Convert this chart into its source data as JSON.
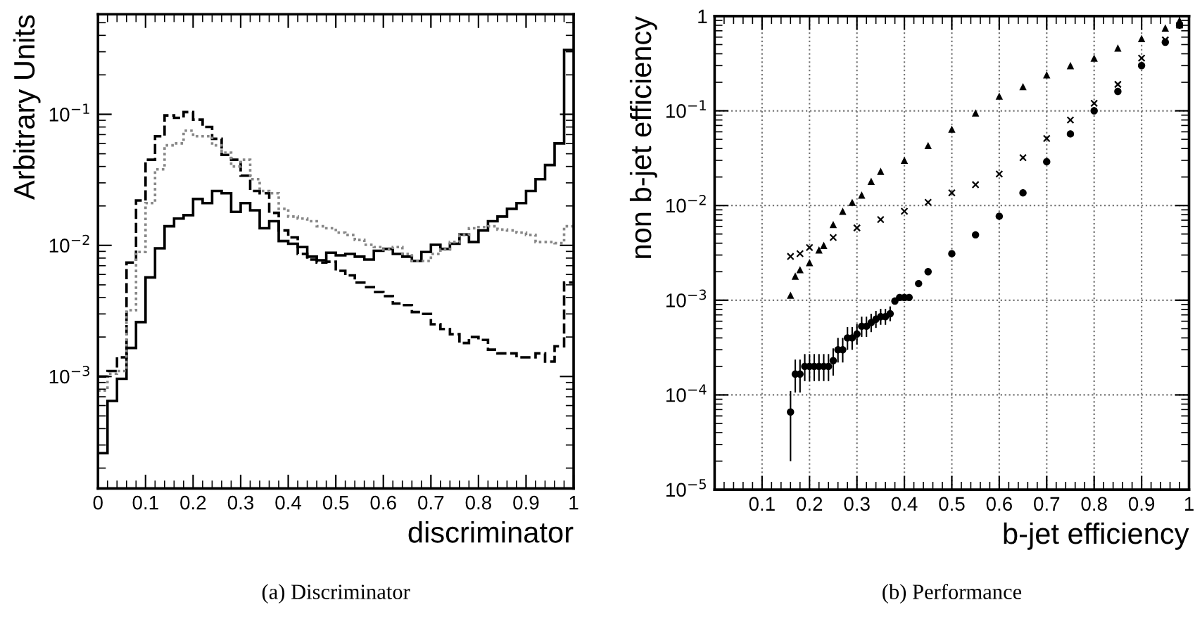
{
  "chart_data": [
    {
      "type": "histogram",
      "xlabel": "discriminator",
      "ylabel": "Arbitrary Units",
      "log": "y",
      "grid": false,
      "bins": [
        0,
        0.02,
        0.04,
        0.06,
        0.08,
        0.1,
        0.12,
        0.14,
        0.16,
        0.18,
        0.2,
        0.22,
        0.24,
        0.26,
        0.28,
        0.3,
        0.32,
        0.34,
        0.36,
        0.38,
        0.4,
        0.42,
        0.44,
        0.46,
        0.48,
        0.5,
        0.52,
        0.54,
        0.56,
        0.58,
        0.6,
        0.62,
        0.64,
        0.66,
        0.68,
        0.7,
        0.72,
        0.74,
        0.76,
        0.78,
        0.8,
        0.82,
        0.84,
        0.86,
        0.88,
        0.9,
        0.92,
        0.94,
        0.96,
        0.98,
        1
      ],
      "series": [
        {
          "color": "#000000",
          "line_style": "solid",
          "values": [
            0.00026,
            0.00065,
            0.00096,
            0.00165,
            0.0026,
            0.0057,
            0.0095,
            0.014,
            0.016,
            0.017,
            0.0226,
            0.021,
            0.026,
            0.025,
            0.018,
            0.021,
            0.0185,
            0.0135,
            0.0153,
            0.0108,
            0.0103,
            0.0097,
            0.0082,
            0.0077,
            0.0088,
            0.0084,
            0.0086,
            0.0082,
            0.0078,
            0.0091,
            0.0094,
            0.0086,
            0.0082,
            0.0076,
            0.0089,
            0.0101,
            0.0094,
            0.0103,
            0.0121,
            0.0106,
            0.013,
            0.0153,
            0.0166,
            0.019,
            0.021,
            0.026,
            0.032,
            0.041,
            0.06,
            0.31
          ]
        },
        {
          "color": "#000000",
          "line_style": "dashed",
          "values": [
            0.001,
            0.0011,
            0.0014,
            0.0074,
            0.022,
            0.045,
            0.068,
            0.098,
            0.094,
            0.104,
            0.091,
            0.08,
            0.065,
            0.049,
            0.045,
            0.034,
            0.026,
            0.025,
            0.0177,
            0.013,
            0.0115,
            0.0086,
            0.0078,
            0.0074,
            0.0075,
            0.0064,
            0.0059,
            0.0052,
            0.0048,
            0.0044,
            0.0041,
            0.0036,
            0.0035,
            0.0031,
            0.003,
            0.0025,
            0.0023,
            0.0021,
            0.0018,
            0.002,
            0.0019,
            0.0016,
            0.0015,
            0.0015,
            0.0014,
            0.0014,
            0.0015,
            0.0013,
            0.0017,
            0.0052
          ]
        },
        {
          "color": "#888888",
          "line_style": "dotted",
          "values": [
            0.00078,
            0.00105,
            0.0011,
            0.0032,
            0.0089,
            0.021,
            0.038,
            0.058,
            0.06,
            0.075,
            0.068,
            0.068,
            0.058,
            0.051,
            0.04,
            0.045,
            0.032,
            0.026,
            0.025,
            0.019,
            0.0166,
            0.016,
            0.0153,
            0.014,
            0.0135,
            0.0125,
            0.012,
            0.011,
            0.0101,
            0.0097,
            0.0093,
            0.0097,
            0.0086,
            0.0076,
            0.0076,
            0.0086,
            0.0093,
            0.0106,
            0.012,
            0.0135,
            0.0138,
            0.014,
            0.0132,
            0.013,
            0.0125,
            0.012,
            0.0106,
            0.0106,
            0.0104,
            0.014
          ]
        }
      ],
      "xlim": [
        0,
        1
      ],
      "xticks": [
        0,
        0.1,
        0.2,
        0.3,
        0.4,
        0.5,
        0.6,
        0.7,
        0.8,
        0.9,
        1
      ],
      "ylim": [
        0.00014,
        0.58
      ],
      "yticks": [
        {
          "value": 0.001,
          "label": "10$^{−3}$"
        },
        {
          "value": 0.01,
          "label": "10$^{−2}$"
        },
        {
          "value": 0.1,
          "label": "10$^{−1}$"
        }
      ],
      "annotations": [
        "(a) Discriminator"
      ]
    },
    {
      "type": "scatter",
      "xlabel": "b-jet efficiency",
      "ylabel": "non b-jet efficiency",
      "log": "y",
      "grid": true,
      "series": [
        {
          "color": "#000000",
          "marker": "triangle",
          "x": [
            0.16,
            0.17,
            0.18,
            0.2,
            0.22,
            0.23,
            0.25,
            0.27,
            0.29,
            0.31,
            0.33,
            0.35,
            0.4,
            0.45,
            0.5,
            0.55,
            0.6,
            0.65,
            0.7,
            0.75,
            0.8,
            0.85,
            0.9,
            0.95,
            0.98
          ],
          "values": [
            0.00113,
            0.0018,
            0.0021,
            0.0025,
            0.0034,
            0.0038,
            0.0063,
            0.0087,
            0.0108,
            0.0129,
            0.018,
            0.023,
            0.03,
            0.043,
            0.064,
            0.095,
            0.143,
            0.18,
            0.24,
            0.3,
            0.36,
            0.46,
            0.58,
            0.75,
            0.9
          ]
        },
        {
          "color": "#000000",
          "marker": "cross",
          "x": [
            0.16,
            0.18,
            0.2,
            0.25,
            0.3,
            0.35,
            0.4,
            0.45,
            0.5,
            0.55,
            0.6,
            0.65,
            0.7,
            0.75,
            0.8,
            0.85,
            0.9,
            0.95,
            0.98
          ],
          "values": [
            0.0029,
            0.0031,
            0.0036,
            0.0046,
            0.0058,
            0.0071,
            0.0087,
            0.0108,
            0.0136,
            0.0166,
            0.0215,
            0.032,
            0.051,
            0.08,
            0.12,
            0.19,
            0.36,
            0.56,
            0.8
          ]
        },
        {
          "color": "#000000",
          "marker": "circle",
          "x": [
            0.16,
            0.17,
            0.18,
            0.19,
            0.2,
            0.21,
            0.22,
            0.23,
            0.24,
            0.25,
            0.26,
            0.27,
            0.28,
            0.29,
            0.3,
            0.31,
            0.32,
            0.33,
            0.34,
            0.35,
            0.36,
            0.37,
            0.38,
            0.39,
            0.4,
            0.41,
            0.43,
            0.45,
            0.5,
            0.55,
            0.6,
            0.65,
            0.7,
            0.75,
            0.8,
            0.85,
            0.9,
            0.95,
            0.98
          ],
          "values": [
            6.6e-05,
            0.000166,
            0.000166,
            0.0002,
            0.0002,
            0.0002,
            0.0002,
            0.0002,
            0.0002,
            0.00023,
            0.0003,
            0.0003,
            0.0004,
            0.0004,
            0.00044,
            0.00053,
            0.00053,
            0.00058,
            0.00063,
            0.00067,
            0.00067,
            0.00072,
            0.00098,
            0.00107,
            0.00107,
            0.00107,
            0.0015,
            0.002,
            0.0031,
            0.0049,
            0.0077,
            0.0136,
            0.029,
            0.057,
            0.1,
            0.16,
            0.3,
            0.53,
            0.8
          ],
          "errors": [
            [
              2e-05,
              0.00011
            ],
            [
              0.000106,
              0.000236
            ],
            [
              0.000106,
              0.000236
            ],
            [
              0.00014,
              0.00027
            ],
            [
              0.00014,
              0.00027
            ],
            [
              0.00014,
              0.00027
            ],
            [
              0.00014,
              0.00027
            ],
            [
              0.00014,
              0.00027
            ],
            [
              0.00014,
              0.00027
            ],
            [
              0.00016,
              0.00031
            ],
            [
              0.00022,
              0.0004
            ],
            [
              0.00022,
              0.0004
            ],
            [
              0.0003,
              0.00052
            ],
            [
              0.0003,
              0.00052
            ],
            [
              0.00034,
              0.00056
            ],
            [
              0.00041,
              0.00067
            ],
            [
              0.00041,
              0.00067
            ],
            [
              0.00046,
              0.00072
            ],
            [
              0.00051,
              0.00077
            ],
            [
              0.00055,
              0.00081
            ],
            [
              0.00055,
              0.00081
            ],
            [
              0.0006,
              0.00086
            ],
            null,
            null,
            null,
            null,
            null,
            null,
            null,
            null,
            null,
            null,
            null,
            null,
            null,
            null,
            null,
            null,
            null
          ]
        }
      ],
      "xlim": [
        0,
        1
      ],
      "xticks": [
        0.1,
        0.2,
        0.3,
        0.4,
        0.5,
        0.6,
        0.7,
        0.8,
        0.9,
        1
      ],
      "ylim": [
        1e-05,
        1
      ],
      "yticks": [
        {
          "value": 1e-05,
          "label": "10$^{−5}$"
        },
        {
          "value": 0.0001,
          "label": "10$^{−4}$"
        },
        {
          "value": 0.001,
          "label": "10$^{−3}$"
        },
        {
          "value": 0.01,
          "label": "10$^{−2}$"
        },
        {
          "value": 0.1,
          "label": "10$^{−1}$"
        },
        1
      ],
      "annotations": [
        "(b) Performance"
      ]
    }
  ]
}
